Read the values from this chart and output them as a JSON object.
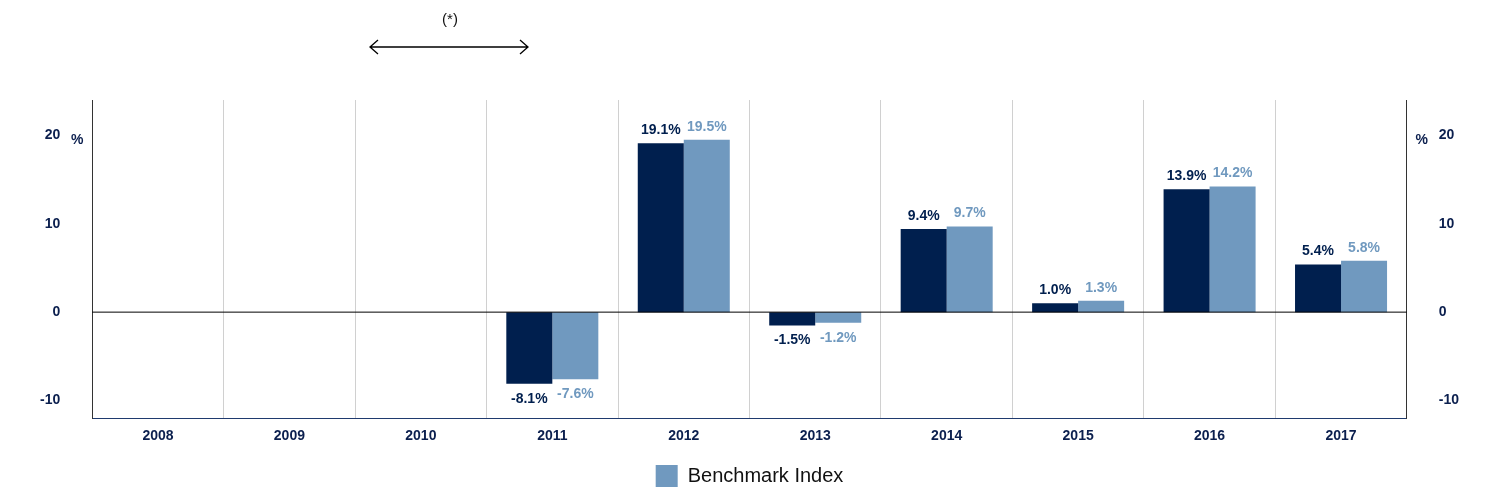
{
  "chart_data": {
    "type": "bar",
    "ylabel": "%",
    "y2label": "%",
    "categories": [
      "2008",
      "2009",
      "2010",
      "2011",
      "2012",
      "2013",
      "2014",
      "2015",
      "2016",
      "2017"
    ],
    "series": [
      {
        "color": "#001f4e",
        "values": [
          null,
          null,
          null,
          -8.1,
          19.1,
          -1.5,
          9.4,
          1.0,
          13.9,
          5.4
        ],
        "value_labels": [
          null,
          null,
          null,
          "-8.1%",
          "19.1%",
          "-1.5%",
          "9.4%",
          "1.0%",
          "13.9%",
          "5.4%"
        ]
      },
      {
        "name": "Benchmark Index",
        "color": "#7099bf",
        "values": [
          null,
          null,
          null,
          -7.6,
          19.5,
          -1.2,
          9.7,
          1.3,
          14.2,
          5.8
        ],
        "value_labels": [
          null,
          null,
          null,
          "-7.6%",
          "19.5%",
          "-1.2%",
          "9.7%",
          "1.3%",
          "14.2%",
          "5.8%"
        ]
      }
    ],
    "ylim": [
      -12,
      24
    ],
    "yticks": [
      -10,
      0,
      10,
      20
    ],
    "y2lim": [
      -12,
      24
    ],
    "y2ticks": [
      -10,
      0,
      10,
      20
    ],
    "ref_lines": [
      {
        "axis": "y",
        "value": 0,
        "color": "#000000"
      }
    ],
    "annotations": [
      "(*)"
    ],
    "grid": "x",
    "legend": "bottom"
  }
}
